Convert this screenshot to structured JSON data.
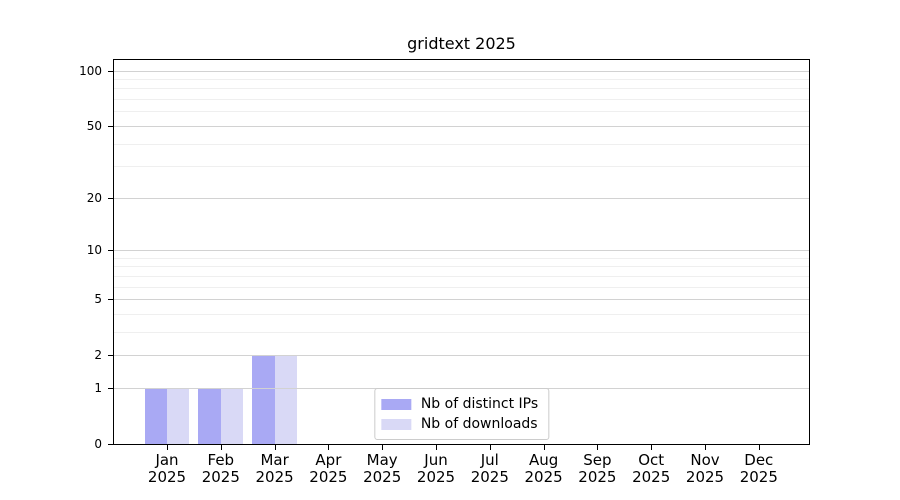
{
  "title": "gridtext 2025",
  "axes": {
    "y_major_ticks": [
      {
        "label": "100",
        "value": 100
      },
      {
        "label": "50",
        "value": 50
      },
      {
        "label": "20",
        "value": 20
      },
      {
        "label": "10",
        "value": 10
      },
      {
        "label": "5",
        "value": 5
      },
      {
        "label": "2",
        "value": 2
      },
      {
        "label": "1",
        "value": 1
      },
      {
        "label": "0",
        "value": 0
      }
    ],
    "y_minor_values": [
      3,
      4,
      6,
      7,
      8,
      9,
      30,
      40,
      60,
      70,
      80,
      90
    ],
    "x_categories": [
      {
        "month": "Jan",
        "year": "2025"
      },
      {
        "month": "Feb",
        "year": "2025"
      },
      {
        "month": "Mar",
        "year": "2025"
      },
      {
        "month": "Apr",
        "year": "2025"
      },
      {
        "month": "May",
        "year": "2025"
      },
      {
        "month": "Jun",
        "year": "2025"
      },
      {
        "month": "Jul",
        "year": "2025"
      },
      {
        "month": "Aug",
        "year": "2025"
      },
      {
        "month": "Sep",
        "year": "2025"
      },
      {
        "month": "Oct",
        "year": "2025"
      },
      {
        "month": "Nov",
        "year": "2025"
      },
      {
        "month": "Dec",
        "year": "2025"
      }
    ]
  },
  "legend": {
    "items": [
      {
        "label": "Nb of distinct IPs",
        "color": "#a9a9f4"
      },
      {
        "label": "Nb of downloads",
        "color": "#d9d9f6"
      }
    ]
  },
  "colors": {
    "bar_distinct_ips": "#a9a9f4",
    "bar_downloads": "#d9d9f6",
    "grid_major": "#d2d2d2",
    "grid_minor": "#efefef",
    "spine": "#000000",
    "legend_border": "#cccccc",
    "text": "#000000"
  },
  "chart_data": {
    "type": "bar",
    "title": "gridtext 2025",
    "categories": [
      "Jan 2025",
      "Feb 2025",
      "Mar 2025",
      "Apr 2025",
      "May 2025",
      "Jun 2025",
      "Jul 2025",
      "Aug 2025",
      "Sep 2025",
      "Oct 2025",
      "Nov 2025",
      "Dec 2025"
    ],
    "series": [
      {
        "name": "Nb of distinct IPs",
        "color": "#a9a9f4",
        "values": [
          1,
          1,
          2,
          0,
          0,
          0,
          0,
          0,
          0,
          0,
          0,
          0
        ]
      },
      {
        "name": "Nb of downloads",
        "color": "#d9d9f6",
        "values": [
          1,
          1,
          2,
          0,
          0,
          0,
          0,
          0,
          0,
          0,
          0,
          0
        ]
      }
    ],
    "yscale": "log10(value+1)",
    "y_ticks": [
      0,
      1,
      2,
      5,
      10,
      20,
      50,
      100
    ],
    "ylim": [
      0,
      114
    ],
    "grid": true,
    "grid_above_bars": true,
    "legend_position": "lower center"
  }
}
